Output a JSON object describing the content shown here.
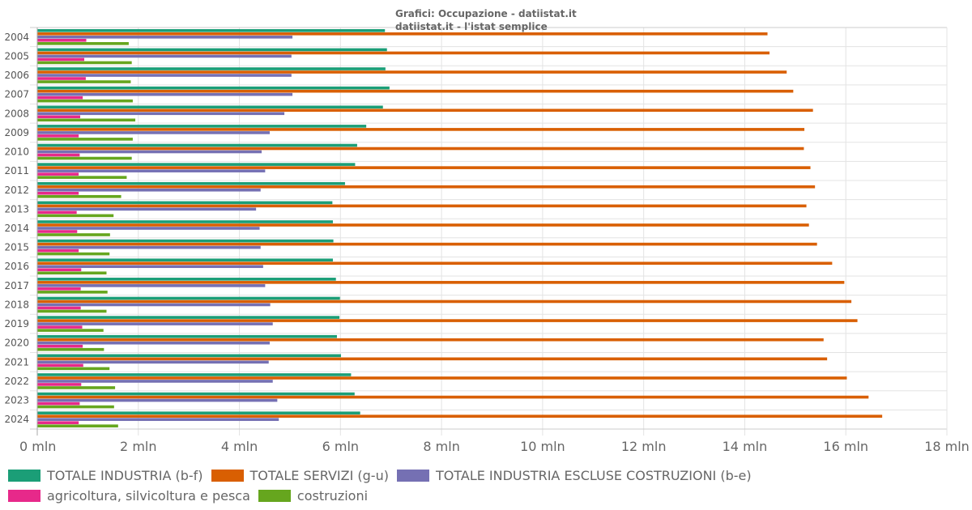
{
  "chart_data": {
    "type": "bar",
    "orientation": "horizontal",
    "title": "Grafici: Occupazione - datiistat.it",
    "subtitle": "datiistat.it - l'istat semplice",
    "xlabel": "",
    "ylabel": "",
    "xlim": [
      0,
      18
    ],
    "x_unit_suffix": " mln",
    "x_ticks": [
      0,
      2,
      4,
      6,
      8,
      10,
      12,
      14,
      16,
      18
    ],
    "x_tick_labels": [
      "0 mln",
      "2 mln",
      "4 mln",
      "6 mln",
      "8 mln",
      "10 mln",
      "12 mln",
      "14 mln",
      "16 mln",
      "18 mln"
    ],
    "grid": true,
    "legend_position": "bottom",
    "categories": [
      "2004",
      "2005",
      "2006",
      "2007",
      "2008",
      "2009",
      "2010",
      "2011",
      "2012",
      "2013",
      "2014",
      "2015",
      "2016",
      "2017",
      "2018",
      "2019",
      "2020",
      "2021",
      "2022",
      "2023",
      "2024"
    ],
    "series": [
      {
        "name": "TOTALE INDUSTRIA (b-f)",
        "color": "#1b9e77",
        "values": [
          6.88,
          6.92,
          6.89,
          6.97,
          6.84,
          6.51,
          6.33,
          6.29,
          6.09,
          5.84,
          5.85,
          5.86,
          5.85,
          5.91,
          5.99,
          5.98,
          5.93,
          6.01,
          6.21,
          6.28,
          6.39
        ]
      },
      {
        "name": "TOTALE SERVIZI (g-u)",
        "color": "#d95f02",
        "values": [
          14.45,
          14.49,
          14.83,
          14.96,
          15.35,
          15.18,
          15.17,
          15.3,
          15.39,
          15.22,
          15.27,
          15.43,
          15.73,
          15.97,
          16.11,
          16.23,
          15.56,
          15.63,
          16.02,
          16.45,
          16.72
        ]
      },
      {
        "name": "TOTALE INDUSTRIA ESCLUSE COSTRUZIONI (b-e)",
        "color": "#7570b3",
        "values": [
          5.05,
          5.03,
          5.03,
          5.05,
          4.89,
          4.6,
          4.44,
          4.51,
          4.42,
          4.33,
          4.4,
          4.42,
          4.47,
          4.51,
          4.61,
          4.66,
          4.6,
          4.58,
          4.66,
          4.75,
          4.78
        ]
      },
      {
        "name": "agricoltura, silvicoltura e pesca",
        "color": "#e7298a",
        "values": [
          0.97,
          0.93,
          0.96,
          0.9,
          0.85,
          0.82,
          0.84,
          0.82,
          0.82,
          0.78,
          0.79,
          0.82,
          0.87,
          0.86,
          0.86,
          0.89,
          0.9,
          0.91,
          0.87,
          0.84,
          0.82
        ]
      },
      {
        "name": "costruzioni",
        "color": "#66a61e",
        "values": [
          1.81,
          1.87,
          1.85,
          1.89,
          1.94,
          1.89,
          1.87,
          1.77,
          1.66,
          1.51,
          1.44,
          1.43,
          1.37,
          1.39,
          1.37,
          1.31,
          1.32,
          1.43,
          1.54,
          1.52,
          1.6
        ]
      }
    ]
  }
}
